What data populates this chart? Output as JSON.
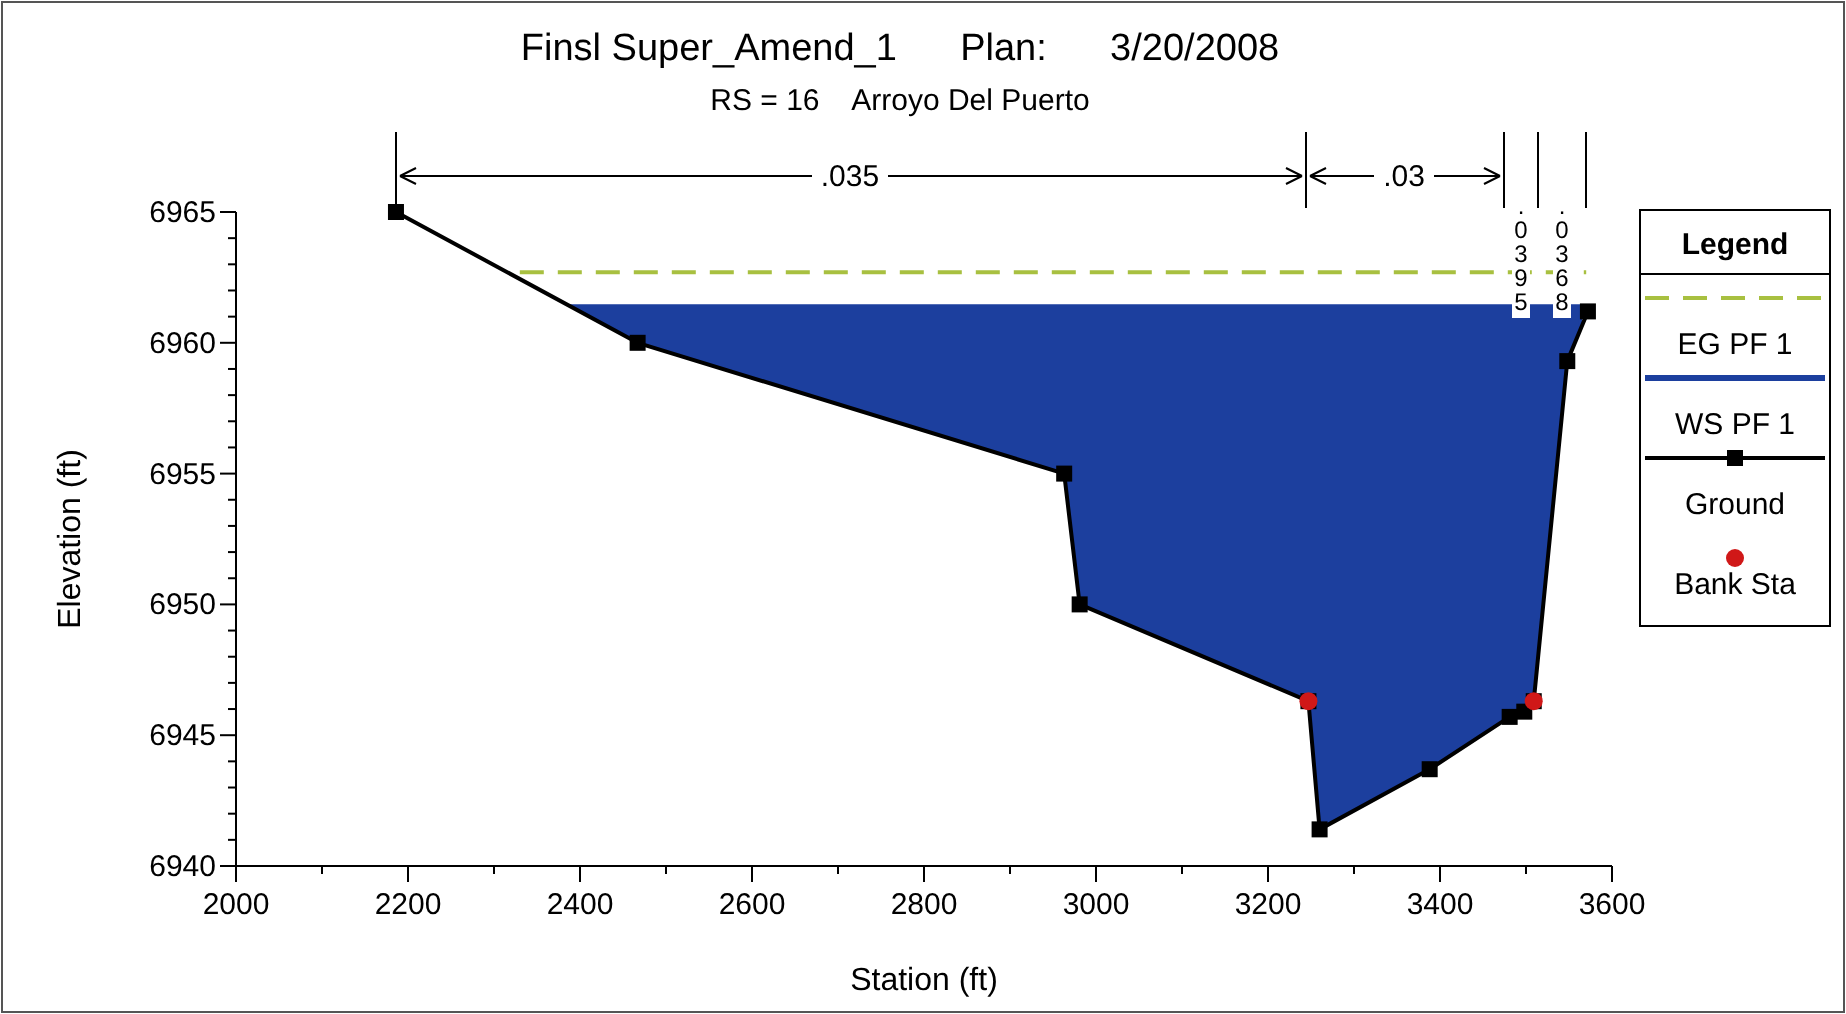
{
  "chart_data": {
    "type": "line",
    "title": "Finsl Super_Amend_1      Plan:      3/20/2008",
    "subtitle": "RS = 16    Arroyo Del Puerto",
    "xlabel": "Station (ft)",
    "ylabel": "Elevation (ft)",
    "legend_title": "Legend",
    "legend": "right",
    "grid": false,
    "xlim": [
      2000,
      3600
    ],
    "ylim": [
      6940,
      6965
    ],
    "xticks": [
      2000,
      {
        "value": 2100,
        "label": null
      },
      2200,
      {
        "value": 2300,
        "label": null
      },
      2400,
      {
        "value": 2500,
        "label": null
      },
      2600,
      {
        "value": 2700,
        "label": null
      },
      2800,
      {
        "value": 2900,
        "label": null
      },
      3000,
      {
        "value": 3100,
        "label": null
      },
      3200,
      {
        "value": 3300,
        "label": null
      },
      3400,
      {
        "value": 3500,
        "label": null
      },
      3600
    ],
    "yticks": [
      6940,
      {
        "value": 6941,
        "label": null
      },
      {
        "value": 6942,
        "label": null
      },
      {
        "value": 6943,
        "label": null
      },
      {
        "value": 6944,
        "label": null
      },
      6945,
      {
        "value": 6946,
        "label": null
      },
      {
        "value": 6947,
        "label": null
      },
      {
        "value": 6948,
        "label": null
      },
      {
        "value": 6949,
        "label": null
      },
      6950,
      {
        "value": 6951,
        "label": null
      },
      {
        "value": 6952,
        "label": null
      },
      {
        "value": 6953,
        "label": null
      },
      {
        "value": 6954,
        "label": null
      },
      6955,
      {
        "value": 6956,
        "label": null
      },
      {
        "value": 6957,
        "label": null
      },
      {
        "value": 6958,
        "label": null
      },
      {
        "value": 6959,
        "label": null
      },
      6960,
      {
        "value": 6961,
        "label": null
      },
      {
        "value": 6962,
        "label": null
      },
      {
        "value": 6963,
        "label": null
      },
      {
        "value": 6964,
        "label": null
      },
      6965
    ],
    "annotations": [
      ".035",
      ".03",
      ".0395",
      ".0368"
    ],
    "series": [
      {
        "name": "EG PF 1",
        "type": "line",
        "line_style": "dashed",
        "marker": "none",
        "color": "#a8c040",
        "x": [
          2330,
          3570
        ],
        "values": [
          6962.7,
          6962.7
        ]
      },
      {
        "name": "WS PF 1",
        "type": "area",
        "marker": "none",
        "color": "#1c3f9e",
        "x": [
          2388,
          3563
        ],
        "values": [
          6961.4,
          6961.4
        ]
      },
      {
        "name": "Ground",
        "type": "line",
        "marker": "square",
        "line_style": "solid",
        "color": "#000000",
        "x": [
          2186,
          2467,
          2963,
          2981,
          3247,
          3260,
          3388,
          3481,
          3498,
          3509,
          3548,
          3572
        ],
        "values": [
          6965,
          6960,
          6955,
          6950,
          6946.3,
          6941.4,
          6943.7,
          6945.7,
          6945.9,
          6946.3,
          6959.3,
          6961.2
        ]
      },
      {
        "name": "Bank Sta",
        "type": "scatter",
        "marker": "circle",
        "color": "#d01818",
        "x": [
          3247,
          3509
        ],
        "values": [
          6946.3,
          6946.3
        ]
      }
    ]
  }
}
